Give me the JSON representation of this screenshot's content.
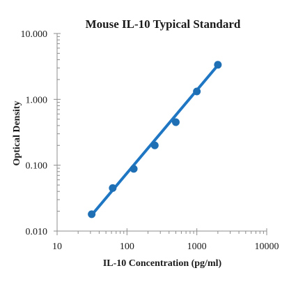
{
  "chart_data": {
    "type": "scatter",
    "title": "Mouse IL-10 Typical Standard",
    "xlabel": "IL-10 Concentration (pg/ml)",
    "ylabel": "Optical Density",
    "x_scale": "log",
    "y_scale": "log",
    "xlim": [
      10,
      10000
    ],
    "ylim": [
      0.01,
      10
    ],
    "x_ticks": [
      10,
      100,
      1000,
      10000
    ],
    "x_tick_labels": [
      "10",
      "100",
      "1000",
      "10000"
    ],
    "y_ticks": [
      0.01,
      0.1,
      1,
      10
    ],
    "y_tick_labels": [
      "0.010",
      "0.100",
      "1.000",
      "10.000"
    ],
    "grid": false,
    "legend": false,
    "series": [
      {
        "x": [
          31.25,
          62.5,
          125,
          250,
          500,
          1000,
          2000
        ],
        "y": [
          0.018,
          0.045,
          0.088,
          0.2,
          0.45,
          1.32,
          3.35
        ],
        "color": "#1f6fb5",
        "marker": "circle"
      }
    ],
    "trendline": {
      "x": [
        31.25,
        2000
      ],
      "y": [
        0.0175,
        3.3
      ],
      "color": "#1f77c4"
    }
  }
}
